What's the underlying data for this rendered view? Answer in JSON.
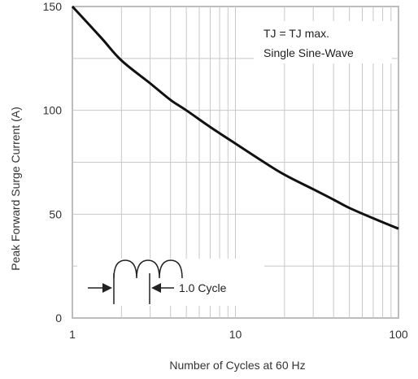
{
  "chart_data": {
    "type": "line",
    "title": "",
    "xlabel": "Number of Cycles at 60 Hz",
    "ylabel": "Peak Forward Surge Current (A)",
    "xscale": "log",
    "xlim": [
      1,
      100
    ],
    "ylim": [
      0,
      150
    ],
    "grid": true,
    "x_ticks": [
      {
        "value": 1,
        "label": "1"
      },
      {
        "value": 10,
        "label": "10"
      },
      {
        "value": 100,
        "label": "100"
      }
    ],
    "y_ticks": [
      {
        "value": 0,
        "label": "0"
      },
      {
        "value": 50,
        "label": "50"
      },
      {
        "value": 100,
        "label": "100"
      },
      {
        "value": 150,
        "label": "150"
      }
    ],
    "series": [
      {
        "x": [
          1,
          1.5,
          2,
          3,
          4,
          5,
          7,
          10,
          15,
          20,
          30,
          40,
          50,
          70,
          100
        ],
        "y": [
          150,
          135,
          124,
          113,
          105,
          100,
          92,
          84,
          75,
          69,
          62,
          57,
          53,
          48,
          43
        ]
      }
    ],
    "annotations": {
      "condition_line1": "TJ = TJ max.",
      "condition_line2": "Single Sine-Wave",
      "cycle_label": "1.0 Cycle"
    },
    "colors": {
      "curve": "#111111",
      "grid": "#c8c8c8",
      "frame": "#bdbdbd"
    }
  }
}
